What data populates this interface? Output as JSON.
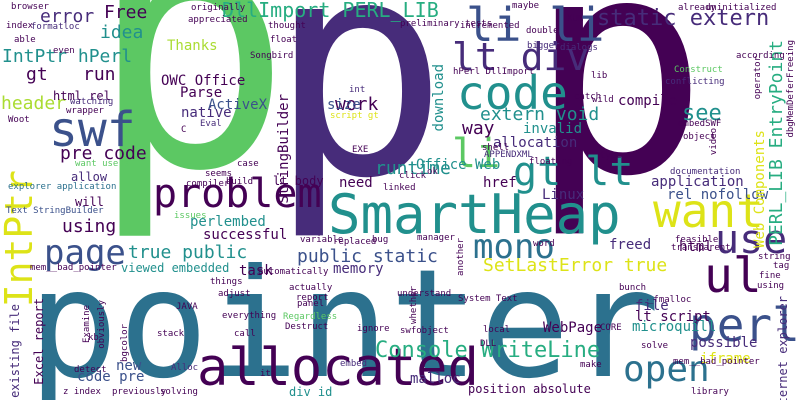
{
  "colors": {
    "background": "#ffffff",
    "dark_purple": "#440154",
    "indigo": "#472c7a",
    "blue": "#3b518b",
    "steel_blue": "#2c718e",
    "teal": "#21908d",
    "green_teal": "#27ad81",
    "green": "#5cc863",
    "light_green": "#aadc32",
    "yellow": "#dde318"
  },
  "words": {
    "p_left": "p",
    "p_right": "p",
    "pointer": "pointer",
    "smartheap": "SmartHeap",
    "allocated": "allocated",
    "intptr": "IntPtr",
    "li_li": "li li",
    "lt_div": "lt div",
    "code": "code",
    "swf": "swf",
    "problem": "problem",
    "want": "want",
    "perl": "perl",
    "ul": "ul",
    "use": "use",
    "mono": "mono",
    "page": "page",
    "gt_lt": "gt lt",
    "li": "li",
    "open": "open",
    "console_writeline": "Console WriteLine",
    "dllimport_perl_lib": "DllImport PERL_LIB",
    "static_extern": "static extern",
    "perl_lib_entrypoint": "PERL_LIB EntryPoint",
    "intptr_hperl": "IntPtr hPerl",
    "error": "error",
    "free": "Free",
    "idea": "idea",
    "gt": "gt",
    "run": "run",
    "header": "header",
    "pre_code": "pre code",
    "using": "using",
    "public_static": "public static",
    "true_public": "true public",
    "setlasterror_true": "SetLastError true",
    "extern_void": "extern void",
    "work": "work",
    "download": "download",
    "runtime": "runtime",
    "way": "way",
    "see": "see",
    "compile": "compile",
    "application": "application",
    "invalid": "invalid",
    "allocation": "allocation",
    "size": "size",
    "need": "need",
    "href": "href",
    "linux": "Linux",
    "native": "native",
    "parse": "Parse",
    "activex": "ActiveX",
    "thanks": "Thanks",
    "owc_office": "OWC Office",
    "stringbuilder": "StringBuilder",
    "perlembed": "perlembed",
    "successful": "successful",
    "task": "task",
    "memory": "memory",
    "html": "html",
    "file": "file",
    "lt_script": "lt script",
    "webpage": "WebPage",
    "possible": "possible",
    "iframe": "iframe",
    "microquill": "microquill",
    "rel_nofollow": "rel nofollow",
    "web_components": "Web Components",
    "freed": "freed",
    "office_web": "Office Web",
    "new": "new",
    "code_pre": "code pre",
    "malloc": "malloc",
    "position_absolute": "position absolute",
    "div_id": "div id",
    "excel_report": "Excel report",
    "existing_file": "existing file",
    "viewed_embedded": "viewed embedded",
    "lt_body": "lt body",
    "allow": "allow",
    "will": "will",
    "html_rel": "html rel",
    "text_stringbuilder": "Text StringBuilder",
    "explorer_application": "explorer application",
    "want_users": "want users",
    "internet_explorer": "internet explorer",
    "system_text": "System Text",
    "embed": "embed",
    "z_index": "z index",
    "script_gt": "script gt",
    "preliminary_tests": "preliminary tests",
    "eval": "Eval",
    "alloc": "Alloc",
    "hperl_dllimport": "hPerl DllImport",
    "bigger": "bigger",
    "dialogs": "dialogs",
    "construct": "Construct",
    "conflicting": "conflicting",
    "lib": "lib",
    "catch": "catch",
    "xul": "XUL",
    "uninitialized": "uninitialized",
    "already": "already",
    "according": "according",
    "operator": "operator",
    "dbgmendeferfreeing": "dbgMemDeferFreeing",
    "thought": "thought",
    "float": "float",
    "songbird": "Songbird",
    "browser": "browser",
    "index": "index",
    "formatloc": "formatloc",
    "able": "able",
    "woot": "Woot",
    "watching": "watching",
    "wrapper": "wrapper",
    "int": "int",
    "maybe": "maybe",
    "double": "double",
    "incremented": "incremented",
    "even": "even",
    "compiler": "compiler",
    "build": "build",
    "seems": "seems",
    "case": "case",
    "exe": "EXE",
    "shell": "shell",
    "appendxml": "APPENDXML",
    "floating": "floating",
    "click": "click",
    "linked": "linked",
    "ok": "ok",
    "type": "type",
    "embedswf": "embedSWF",
    "object": "object",
    "video": "video",
    "documentation": "documentation",
    "variable": "variable",
    "replaced": "replaced",
    "bug": "bug",
    "manager": "manager",
    "another": "another",
    "feasible": "feasible",
    "transparent": "transparent",
    "tag": "tag",
    "string": "string",
    "fine": "fine",
    "things": "things",
    "actually": "actually",
    "report": "report",
    "adjust": "adjust",
    "everything": "everything",
    "regardless": "Regardless",
    "destruct": "Destruct",
    "ignore": "ignore",
    "swfobject": "swfobject",
    "whether": "whether",
    "fmalloc": "_fmalloc",
    "bunch": "bunch",
    "mem_bad_pointer": "mem__bad_pointer",
    "examine": "Examine",
    "obviously": "obviously",
    "java": "JAVA",
    "kb": "kb",
    "stack": "stack",
    "call": "call",
    "dll": "DLL",
    "core": "CORE",
    "local": "local",
    "solve": "solve",
    "make": "make",
    "mem_bad_pointer_2": "mem__bad_pointer",
    "library": "library",
    "previously": "previously",
    "solving": "solving",
    "detect": "detect",
    "bgcolor": "bgcolor",
    "originally": "originally",
    "appreciated": "appreciated",
    "panel": "panel",
    "understand": "understand",
    "automatically": "automatically",
    "word": "word",
    "issues": "issues",
    "c": "C",
    "ita": "ita",
    "wild": "wild"
  }
}
